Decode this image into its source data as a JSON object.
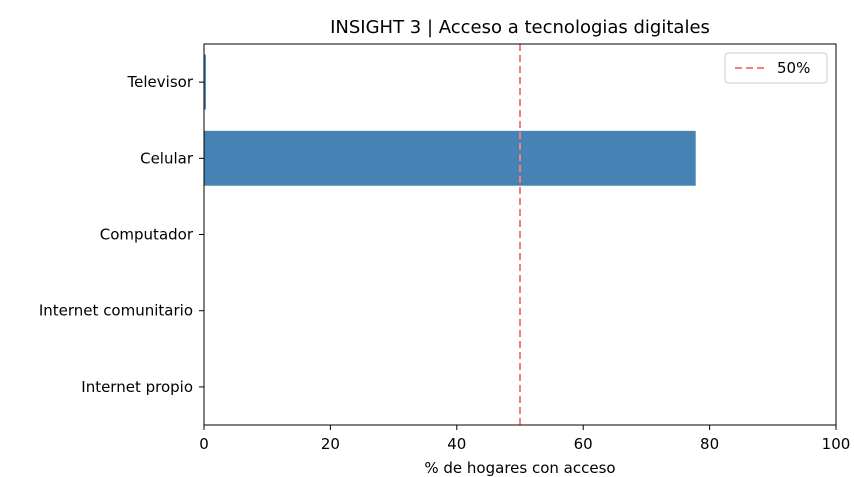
{
  "chart_data": {
    "type": "bar",
    "orientation": "horizontal",
    "title": "INSIGHT 3 | Acceso a tecnologias digitales",
    "xlabel": "% de hogares con acceso",
    "ylabel": "",
    "categories": [
      "Televisor",
      "Celular",
      "Computador",
      "Internet comunitario",
      "Internet propio"
    ],
    "values": [
      0.3,
      77.8,
      0,
      0,
      0
    ],
    "xlim": [
      0,
      100
    ],
    "xticks": [
      0,
      20,
      40,
      60,
      80,
      100
    ],
    "bar_color": "#4682b4",
    "reference_line": {
      "value": 50,
      "label": "50%",
      "color": "#f08080",
      "style": "dashed"
    },
    "legend": {
      "position": "top-right",
      "entries": [
        "50%"
      ]
    },
    "grid": false
  }
}
